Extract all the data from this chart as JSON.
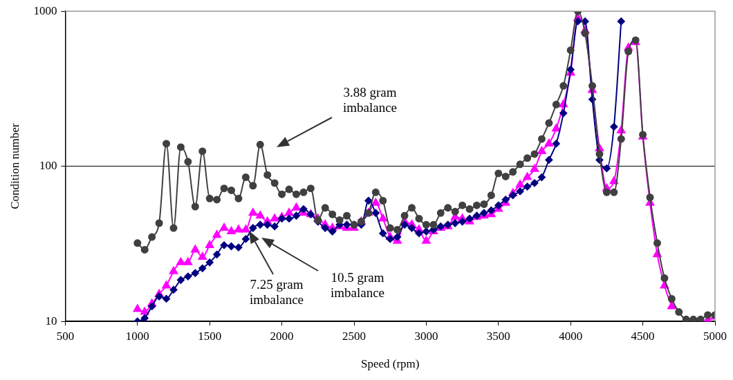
{
  "chart_data": {
    "type": "line",
    "xlabel": "Speed (rpm)",
    "ylabel": "Condition number",
    "log": "y",
    "grid": "y",
    "legend": false,
    "xlim": [
      500,
      5000
    ],
    "xticks": [
      500,
      1000,
      1500,
      2000,
      2500,
      3000,
      3500,
      4000,
      4500,
      5000
    ],
    "ylim": [
      10,
      1000
    ],
    "yticks": [
      10,
      100,
      1000
    ],
    "x": [
      1000,
      1050,
      1100,
      1150,
      1200,
      1250,
      1300,
      1350,
      1400,
      1450,
      1500,
      1550,
      1600,
      1650,
      1700,
      1750,
      1800,
      1850,
      1900,
      1950,
      2000,
      2050,
      2100,
      2150,
      2200,
      2250,
      2300,
      2350,
      2400,
      2450,
      2500,
      2550,
      2600,
      2650,
      2700,
      2750,
      2800,
      2850,
      2900,
      2950,
      3000,
      3050,
      3100,
      3150,
      3200,
      3250,
      3300,
      3350,
      3400,
      3450,
      3500,
      3550,
      3600,
      3650,
      3700,
      3750,
      3800,
      3850,
      3900,
      3950,
      4000,
      4050,
      4100,
      4150,
      4200,
      4250,
      4300,
      4350,
      4400,
      4450,
      4500,
      4550,
      4600,
      4650,
      4700,
      4750,
      4800,
      4850,
      4900,
      4950,
      5000
    ],
    "series": [
      {
        "color": "#404040",
        "marker": "circle",
        "values": [
          32,
          29,
          35,
          43,
          140,
          40,
          133,
          107,
          55,
          125,
          62,
          61,
          72,
          70,
          62,
          85,
          75,
          138,
          88,
          78,
          66,
          71,
          66,
          68,
          72,
          45,
          54,
          49,
          45,
          48,
          42,
          44,
          50,
          68,
          60,
          40,
          39,
          48,
          54,
          46,
          42,
          42,
          50,
          54,
          51,
          56,
          53,
          56,
          57,
          65,
          90,
          86,
          92,
          103,
          113,
          120,
          150,
          190,
          250,
          330,
          560,
          1000,
          720,
          330,
          120,
          68,
          68,
          150,
          550,
          650,
          160,
          63,
          32,
          19,
          14,
          11.5,
          10.3,
          10.3,
          10.3,
          11,
          11
        ]
      },
      {
        "color": "#000080",
        "marker": "diamond",
        "values": [
          10,
          10.5,
          12.5,
          14.5,
          14,
          16,
          18.5,
          19.5,
          20.5,
          22,
          24,
          27,
          31,
          30.5,
          30,
          34,
          40,
          42,
          42,
          41,
          46,
          46,
          48,
          53,
          49,
          44,
          40,
          38,
          42,
          42,
          42,
          42,
          60,
          50,
          37,
          34,
          35,
          42,
          40,
          37,
          38,
          39,
          41,
          42,
          43,
          44,
          46,
          48,
          50,
          52,
          56,
          61,
          65,
          69,
          74,
          78,
          85,
          110,
          140,
          220,
          420,
          860,
          860,
          270,
          110,
          97,
          180,
          860,
          null,
          null,
          null,
          null,
          null,
          null,
          null,
          null,
          null,
          null,
          null,
          null,
          null
        ]
      },
      {
        "color": "#ff00ff",
        "marker": "triangle",
        "values": [
          12,
          11.5,
          13,
          15,
          17,
          21,
          24,
          24,
          29,
          26,
          31,
          36,
          40,
          38,
          39,
          39,
          50,
          48,
          44,
          46,
          47,
          50,
          54,
          50,
          49,
          46,
          42,
          40,
          41,
          40,
          40,
          44,
          50,
          58,
          46,
          35,
          33,
          44,
          42,
          39,
          33,
          38,
          40,
          41,
          47,
          46,
          44,
          47,
          48,
          49,
          53,
          58,
          67,
          76,
          85,
          96,
          125,
          140,
          175,
          250,
          400,
          900,
          750,
          310,
          130,
          72,
          80,
          170,
          580,
          630,
          155,
          58,
          27,
          17,
          12.5,
          null,
          null,
          null,
          null,
          10.2,
          10.7
        ]
      }
    ],
    "annotations": [
      "3.88 gram imbalance",
      "7.25 gram imbalance",
      "10.5 gram imbalance"
    ]
  }
}
